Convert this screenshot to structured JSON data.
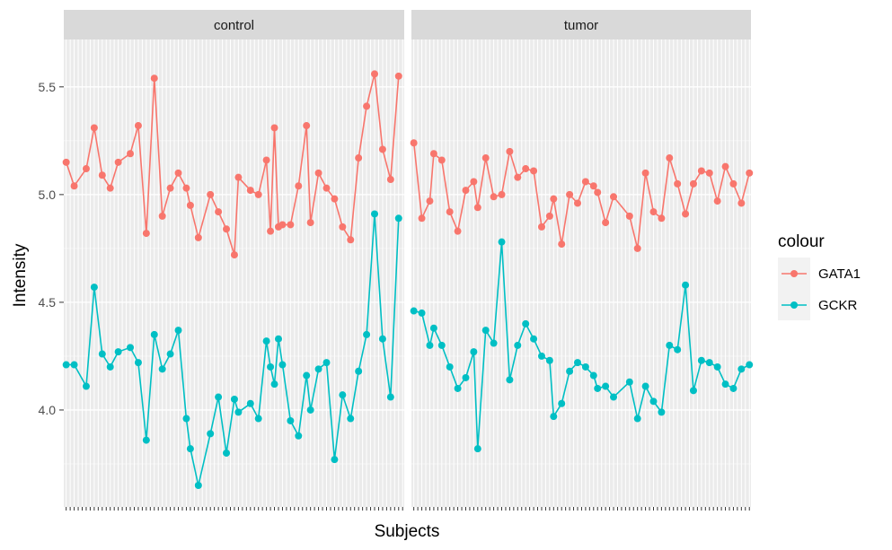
{
  "chart_data": {
    "type": "line",
    "xlabel": "Subjects",
    "ylabel": "Intensity",
    "ylim": [
      3.55,
      5.72
    ],
    "yticks": [
      4.0,
      4.5,
      5.0,
      5.5
    ],
    "ytick_labels": [
      "4.0",
      "4.5",
      "5.0",
      "5.5"
    ],
    "grid": true,
    "legend": {
      "title": "colour",
      "position": "right",
      "entries": [
        {
          "name": "GATA1",
          "color": "#F8766D"
        },
        {
          "name": "GCKR",
          "color": "#00BFC4"
        }
      ]
    },
    "panels": [
      {
        "label": "control",
        "x_count": 80,
        "series": [
          {
            "name": "GATA1",
            "color": "#F8766D",
            "points": [
              [
                1,
                5.15
              ],
              [
                3,
                5.04
              ],
              [
                6,
                5.12
              ],
              [
                8,
                5.31
              ],
              [
                10,
                5.09
              ],
              [
                12,
                5.03
              ],
              [
                14,
                5.15
              ],
              [
                17,
                5.19
              ],
              [
                19,
                5.32
              ],
              [
                21,
                4.82
              ],
              [
                23,
                5.54
              ],
              [
                25,
                4.9
              ],
              [
                27,
                5.03
              ],
              [
                29,
                5.1
              ],
              [
                31,
                5.03
              ],
              [
                32,
                4.95
              ],
              [
                34,
                4.8
              ],
              [
                37,
                5.0
              ],
              [
                39,
                4.92
              ],
              [
                41,
                4.84
              ],
              [
                43,
                4.72
              ],
              [
                44,
                5.08
              ],
              [
                47,
                5.02
              ],
              [
                49,
                5.0
              ],
              [
                51,
                5.16
              ],
              [
                52,
                4.83
              ],
              [
                53,
                5.31
              ],
              [
                54,
                4.85
              ],
              [
                55,
                4.86
              ],
              [
                57,
                4.86
              ],
              [
                59,
                5.04
              ],
              [
                61,
                5.32
              ],
              [
                62,
                4.87
              ],
              [
                64,
                5.1
              ],
              [
                66,
                5.03
              ],
              [
                68,
                4.98
              ],
              [
                70,
                4.85
              ],
              [
                72,
                4.79
              ],
              [
                74,
                5.17
              ],
              [
                76,
                5.41
              ],
              [
                78,
                5.56
              ],
              [
                80,
                5.21
              ],
              [
                82,
                5.07
              ],
              [
                84,
                5.55
              ]
            ]
          },
          {
            "name": "GCKR",
            "color": "#00BFC4",
            "points": [
              [
                1,
                4.21
              ],
              [
                3,
                4.21
              ],
              [
                6,
                4.11
              ],
              [
                8,
                4.57
              ],
              [
                10,
                4.26
              ],
              [
                12,
                4.2
              ],
              [
                14,
                4.27
              ],
              [
                17,
                4.29
              ],
              [
                19,
                4.22
              ],
              [
                21,
                3.86
              ],
              [
                23,
                4.35
              ],
              [
                25,
                4.19
              ],
              [
                27,
                4.26
              ],
              [
                29,
                4.37
              ],
              [
                31,
                3.96
              ],
              [
                32,
                3.82
              ],
              [
                34,
                3.65
              ],
              [
                37,
                3.89
              ],
              [
                39,
                4.06
              ],
              [
                41,
                3.8
              ],
              [
                43,
                4.05
              ],
              [
                44,
                3.99
              ],
              [
                47,
                4.03
              ],
              [
                49,
                3.96
              ],
              [
                51,
                4.32
              ],
              [
                52,
                4.2
              ],
              [
                53,
                4.12
              ],
              [
                54,
                4.33
              ],
              [
                55,
                4.21
              ],
              [
                57,
                3.95
              ],
              [
                59,
                3.88
              ],
              [
                61,
                4.16
              ],
              [
                62,
                4.0
              ],
              [
                64,
                4.19
              ],
              [
                66,
                4.22
              ],
              [
                68,
                3.77
              ],
              [
                70,
                4.07
              ],
              [
                72,
                3.96
              ],
              [
                74,
                4.18
              ],
              [
                76,
                4.35
              ],
              [
                78,
                4.91
              ],
              [
                80,
                4.33
              ],
              [
                82,
                4.06
              ],
              [
                84,
                4.89
              ]
            ]
          }
        ]
      },
      {
        "label": "tumor",
        "x_count": 80,
        "series": [
          {
            "name": "GATA1",
            "color": "#F8766D",
            "points": [
              [
                1,
                5.24
              ],
              [
                3,
                4.89
              ],
              [
                5,
                4.97
              ],
              [
                6,
                5.19
              ],
              [
                8,
                5.16
              ],
              [
                10,
                4.92
              ],
              [
                12,
                4.83
              ],
              [
                14,
                5.02
              ],
              [
                16,
                5.06
              ],
              [
                17,
                4.94
              ],
              [
                19,
                5.17
              ],
              [
                21,
                4.99
              ],
              [
                23,
                5.0
              ],
              [
                25,
                5.2
              ],
              [
                27,
                5.08
              ],
              [
                29,
                5.12
              ],
              [
                31,
                5.11
              ],
              [
                33,
                4.85
              ],
              [
                35,
                4.9
              ],
              [
                36,
                4.98
              ],
              [
                38,
                4.77
              ],
              [
                40,
                5.0
              ],
              [
                42,
                4.96
              ],
              [
                44,
                5.06
              ],
              [
                46,
                5.04
              ],
              [
                47,
                5.01
              ],
              [
                49,
                4.87
              ],
              [
                51,
                4.99
              ],
              [
                55,
                4.9
              ],
              [
                57,
                4.75
              ],
              [
                59,
                5.1
              ],
              [
                61,
                4.92
              ],
              [
                63,
                4.89
              ],
              [
                65,
                5.17
              ],
              [
                67,
                5.05
              ],
              [
                69,
                4.91
              ],
              [
                71,
                5.05
              ],
              [
                73,
                5.11
              ],
              [
                75,
                5.1
              ],
              [
                77,
                4.97
              ],
              [
                79,
                5.13
              ],
              [
                81,
                5.05
              ],
              [
                83,
                4.96
              ],
              [
                85,
                5.1
              ]
            ]
          },
          {
            "name": "GCKR",
            "color": "#00BFC4",
            "points": [
              [
                1,
                4.46
              ],
              [
                3,
                4.45
              ],
              [
                5,
                4.3
              ],
              [
                6,
                4.38
              ],
              [
                8,
                4.3
              ],
              [
                10,
                4.2
              ],
              [
                12,
                4.1
              ],
              [
                14,
                4.15
              ],
              [
                16,
                4.27
              ],
              [
                17,
                3.82
              ],
              [
                19,
                4.37
              ],
              [
                21,
                4.31
              ],
              [
                23,
                4.78
              ],
              [
                25,
                4.14
              ],
              [
                27,
                4.3
              ],
              [
                29,
                4.4
              ],
              [
                31,
                4.33
              ],
              [
                33,
                4.25
              ],
              [
                35,
                4.23
              ],
              [
                36,
                3.97
              ],
              [
                38,
                4.03
              ],
              [
                40,
                4.18
              ],
              [
                42,
                4.22
              ],
              [
                44,
                4.2
              ],
              [
                46,
                4.16
              ],
              [
                47,
                4.1
              ],
              [
                49,
                4.11
              ],
              [
                51,
                4.06
              ],
              [
                55,
                4.13
              ],
              [
                57,
                3.96
              ],
              [
                59,
                4.11
              ],
              [
                61,
                4.04
              ],
              [
                63,
                3.99
              ],
              [
                65,
                4.3
              ],
              [
                67,
                4.28
              ],
              [
                69,
                4.58
              ],
              [
                71,
                4.09
              ],
              [
                73,
                4.23
              ],
              [
                75,
                4.22
              ],
              [
                77,
                4.2
              ],
              [
                79,
                4.12
              ],
              [
                81,
                4.1
              ],
              [
                83,
                4.19
              ],
              [
                85,
                4.21
              ]
            ]
          }
        ]
      }
    ]
  }
}
